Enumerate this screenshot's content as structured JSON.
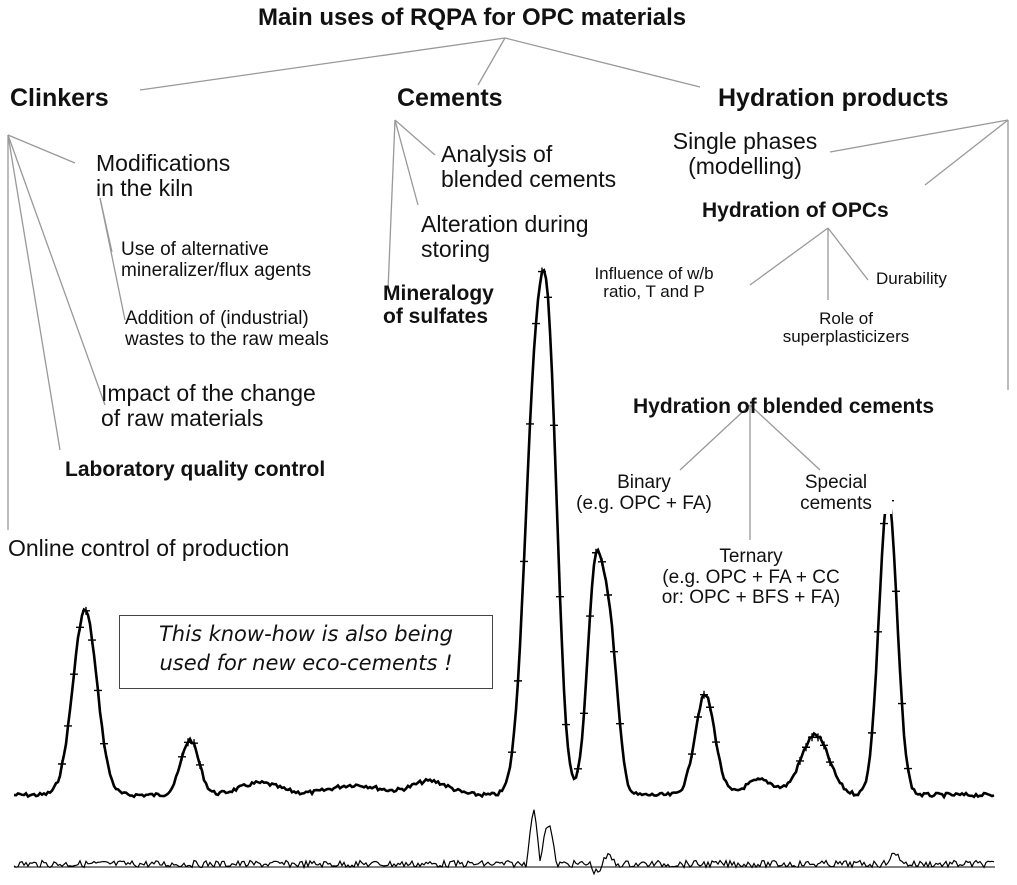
{
  "title": "Main uses of RQPA for OPC materials",
  "categories": {
    "clinkers": "Clinkers",
    "cements": "Cements",
    "hydration": "Hydration products"
  },
  "clinkers": {
    "modifications": [
      "Modifications",
      "in the kiln"
    ],
    "alt_mineralizer": [
      "Use of alternative",
      "mineralizer/flux agents"
    ],
    "wastes": [
      "Addition of (industrial)",
      "wastes to the raw meals"
    ],
    "raw_change": [
      "Impact of the change",
      "of raw materials"
    ],
    "lab_qc": "Laboratory quality control",
    "online": "Online control of production"
  },
  "cements": {
    "blended": [
      "Analysis of",
      "blended cements"
    ],
    "alteration": [
      "Alteration during",
      "storing"
    ],
    "sulfates": [
      "Mineralogy",
      "of sulfates"
    ]
  },
  "hydration": {
    "single": [
      "Single phases",
      "(modelling)"
    ],
    "opc": "Hydration of OPCs",
    "wb": [
      "Influence of w/b",
      "ratio, T and P"
    ],
    "durability": "Durability",
    "superplasticizers": [
      "Role of",
      "superplasticizers"
    ],
    "blended": "Hydration of blended cements",
    "binary": [
      "Binary",
      "(e.g. OPC + FA)"
    ],
    "special": [
      "Special",
      "cements"
    ],
    "ternary": [
      "Ternary",
      "(e.g. OPC  +  FA  + CC",
      "or: OPC + BFS + FA)"
    ]
  },
  "note": [
    "This know-how is also being",
    "used for new eco-cements !"
  ]
}
